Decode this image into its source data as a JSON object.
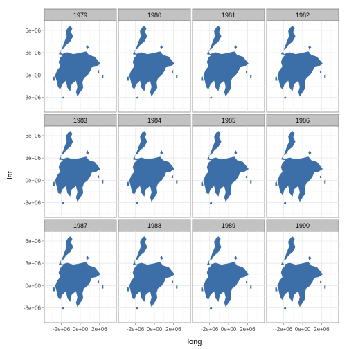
{
  "chart_data": {
    "type": "map",
    "panels": [
      "1979",
      "1980",
      "1981",
      "1982",
      "1983",
      "1984",
      "1985",
      "1986",
      "1987",
      "1988",
      "1989",
      "1990"
    ],
    "facet_rows": 3,
    "facet_cols": 4,
    "xlabel": "long",
    "ylabel": "lat",
    "x_ticks": [
      -2000000,
      0,
      2000000
    ],
    "x_tick_labels": [
      "-2e+06",
      "0e+00",
      "2e+06"
    ],
    "y_ticks": [
      -3000000,
      0,
      3000000,
      6000000
    ],
    "y_tick_labels": [
      "-3e+06",
      "0e+00",
      "3e+06",
      "6e+06"
    ],
    "xlim": [
      -3800000,
      3800000
    ],
    "ylim": [
      -5000000,
      7300000
    ],
    "grid": true,
    "legend": "none",
    "fill_color": "#3c6ea8",
    "strip_color": "#c2c2c2"
  }
}
